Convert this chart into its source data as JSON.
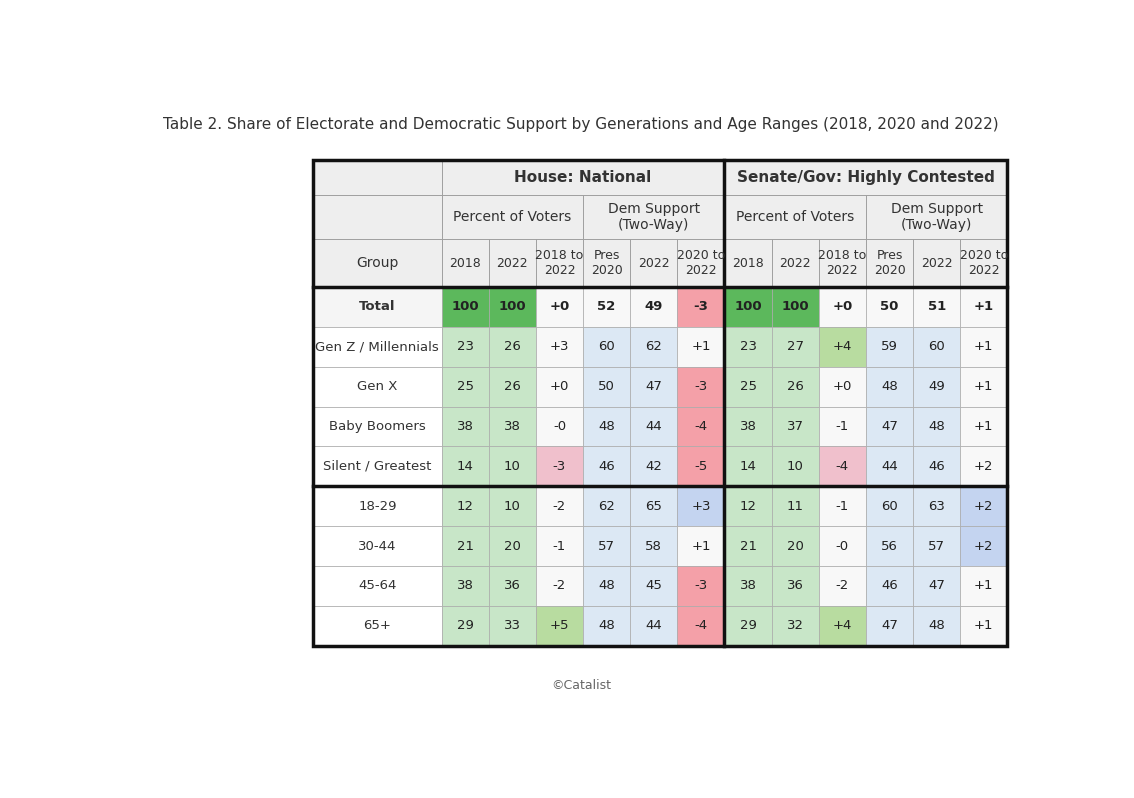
{
  "title": "Table 2. Share of Electorate and Democratic Support by Generations and Age Ranges (2018, 2020 and 2022)",
  "footer": "©Catalist",
  "col_headers": [
    "2018",
    "2022",
    "2018 to\n2022",
    "Pres\n2020",
    "2022",
    "2020 to\n2022",
    "2018",
    "2022",
    "2018 to\n2022",
    "Pres\n2020",
    "2022",
    "2020 to\n2022"
  ],
  "row_labels": [
    "Total",
    "Gen Z / Millennials",
    "Gen X",
    "Baby Boomers",
    "Silent / Greatest",
    "18-29",
    "30-44",
    "45-64",
    "65+"
  ],
  "data": [
    [
      "100",
      "100",
      "+0",
      "52",
      "49",
      "-3",
      "100",
      "100",
      "+0",
      "50",
      "51",
      "+1"
    ],
    [
      "23",
      "26",
      "+3",
      "60",
      "62",
      "+1",
      "23",
      "27",
      "+4",
      "59",
      "60",
      "+1"
    ],
    [
      "25",
      "26",
      "+0",
      "50",
      "47",
      "-3",
      "25",
      "26",
      "+0",
      "48",
      "49",
      "+1"
    ],
    [
      "38",
      "38",
      "-0",
      "48",
      "44",
      "-4",
      "38",
      "37",
      "-1",
      "47",
      "48",
      "+1"
    ],
    [
      "14",
      "10",
      "-3",
      "46",
      "42",
      "-5",
      "14",
      "10",
      "-4",
      "44",
      "46",
      "+2"
    ],
    [
      "12",
      "10",
      "-2",
      "62",
      "65",
      "+3",
      "12",
      "11",
      "-1",
      "60",
      "63",
      "+2"
    ],
    [
      "21",
      "20",
      "-1",
      "57",
      "58",
      "+1",
      "21",
      "20",
      "-0",
      "56",
      "57",
      "+2"
    ],
    [
      "38",
      "36",
      "-2",
      "48",
      "45",
      "-3",
      "38",
      "36",
      "-2",
      "46",
      "47",
      "+1"
    ],
    [
      "29",
      "33",
      "+5",
      "48",
      "44",
      "-4",
      "29",
      "32",
      "+4",
      "47",
      "48",
      "+1"
    ]
  ],
  "cell_colors": [
    [
      "#5cb85c",
      "#5cb85c",
      "#f8f8f8",
      "#f8f8f8",
      "#f8f8f8",
      "#f4a0a8",
      "#5cb85c",
      "#5cb85c",
      "#f8f8f8",
      "#f8f8f8",
      "#f8f8f8",
      "#f8f8f8"
    ],
    [
      "#c8e6c8",
      "#c8e6c8",
      "#f8f8f8",
      "#dce8f4",
      "#dce8f4",
      "#f8f8f8",
      "#c8e6c8",
      "#c8e6c8",
      "#b8dca0",
      "#dce8f4",
      "#dce8f4",
      "#f8f8f8"
    ],
    [
      "#c8e6c8",
      "#c8e6c8",
      "#f8f8f8",
      "#dce8f4",
      "#dce8f4",
      "#f4a0a8",
      "#c8e6c8",
      "#c8e6c8",
      "#f8f8f8",
      "#dce8f4",
      "#dce8f4",
      "#f8f8f8"
    ],
    [
      "#c8e6c8",
      "#c8e6c8",
      "#f8f8f8",
      "#dce8f4",
      "#dce8f4",
      "#f4a0a8",
      "#c8e6c8",
      "#c8e6c8",
      "#f8f8f8",
      "#dce8f4",
      "#dce8f4",
      "#f8f8f8"
    ],
    [
      "#c8e6c8",
      "#c8e6c8",
      "#f0c0cc",
      "#dce8f4",
      "#dce8f4",
      "#f4a0a8",
      "#c8e6c8",
      "#c8e6c8",
      "#f0c0cc",
      "#dce8f4",
      "#dce8f4",
      "#f8f8f8"
    ],
    [
      "#c8e6c8",
      "#c8e6c8",
      "#f8f8f8",
      "#dce8f4",
      "#dce8f4",
      "#c4d4f0",
      "#c8e6c8",
      "#c8e6c8",
      "#f8f8f8",
      "#dce8f4",
      "#dce8f4",
      "#c4d4f0"
    ],
    [
      "#c8e6c8",
      "#c8e6c8",
      "#f8f8f8",
      "#dce8f4",
      "#dce8f4",
      "#f8f8f8",
      "#c8e6c8",
      "#c8e6c8",
      "#f8f8f8",
      "#dce8f4",
      "#dce8f4",
      "#c4d4f0"
    ],
    [
      "#c8e6c8",
      "#c8e6c8",
      "#f8f8f8",
      "#dce8f4",
      "#dce8f4",
      "#f4a0a8",
      "#c8e6c8",
      "#c8e6c8",
      "#f8f8f8",
      "#dce8f4",
      "#dce8f4",
      "#f8f8f8"
    ],
    [
      "#c8e6c8",
      "#c8e6c8",
      "#b8dca0",
      "#dce8f4",
      "#dce8f4",
      "#f4a0a8",
      "#c8e6c8",
      "#c8e6c8",
      "#b8dca0",
      "#dce8f4",
      "#dce8f4",
      "#f8f8f8"
    ]
  ],
  "group_separator_row": 5,
  "background_color": "#ffffff"
}
